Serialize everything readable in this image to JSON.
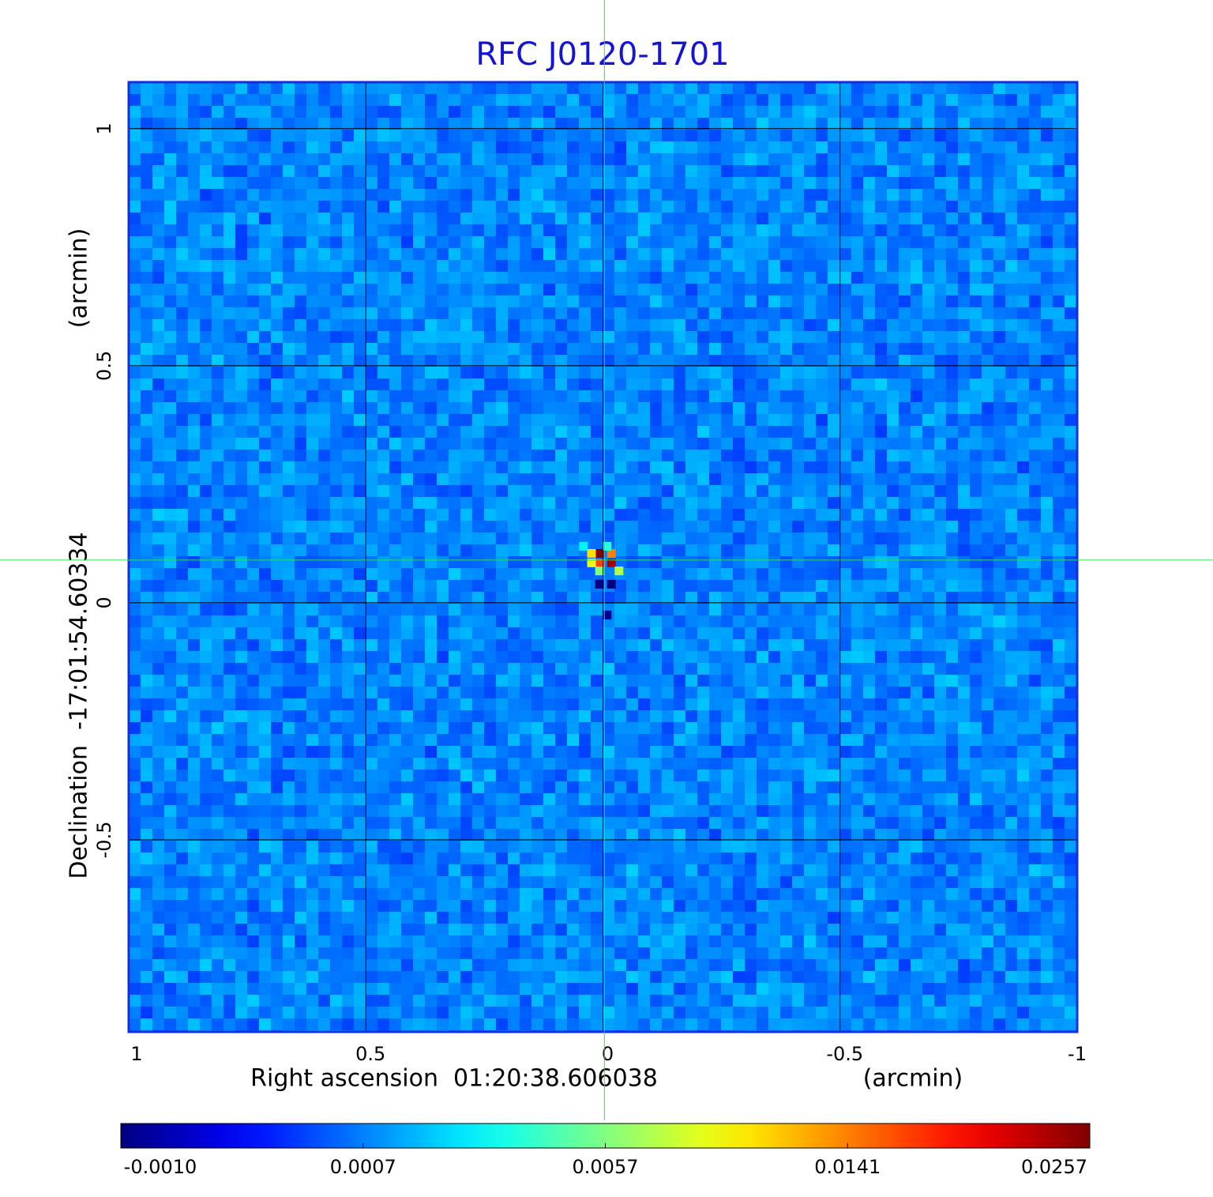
{
  "chart_data": {
    "type": "image",
    "title": "RFC J0120-1701",
    "xlabel": "Right ascension  01:20:38.606038",
    "xunit": "(arcmin)",
    "ylabel": "Declination  -17:01:54.60334",
    "yunit": "(arcmin)",
    "xlim": [
      1.0,
      -1.0
    ],
    "ylim": [
      -0.905,
      1.098
    ],
    "xticks": [
      1.0,
      0.5,
      0.0,
      -0.5,
      -1.0
    ],
    "yticks": [
      -0.5,
      0.0,
      0.5,
      1.0
    ],
    "grid": true,
    "colormap": "jet",
    "crosshair": {
      "x": -0.003,
      "y": 0.09
    },
    "source": {
      "x": [
        0.008,
        -0.017,
        0.008,
        -0.017,
        0.025,
        0.025,
        -0.033,
        0.008,
        0.042,
        -0.008,
        0.008,
        -0.017,
        -0.008
      ],
      "y": [
        0.105,
        0.085,
        0.085,
        0.105,
        0.105,
        0.085,
        0.068,
        0.068,
        0.12,
        0.12,
        0.04,
        0.04,
        -0.025
      ],
      "values": [
        0.0257,
        0.024,
        0.017,
        0.0141,
        0.011,
        0.009,
        0.0075,
        0.0057,
        0.003,
        0.004,
        -0.001,
        -0.001,
        -0.0009
      ]
    },
    "colorbar_ticks": [
      {
        "value": -0.001,
        "label": "-0.0010"
      },
      0.0007,
      0.0057,
      0.0141,
      0.0257
    ]
  }
}
